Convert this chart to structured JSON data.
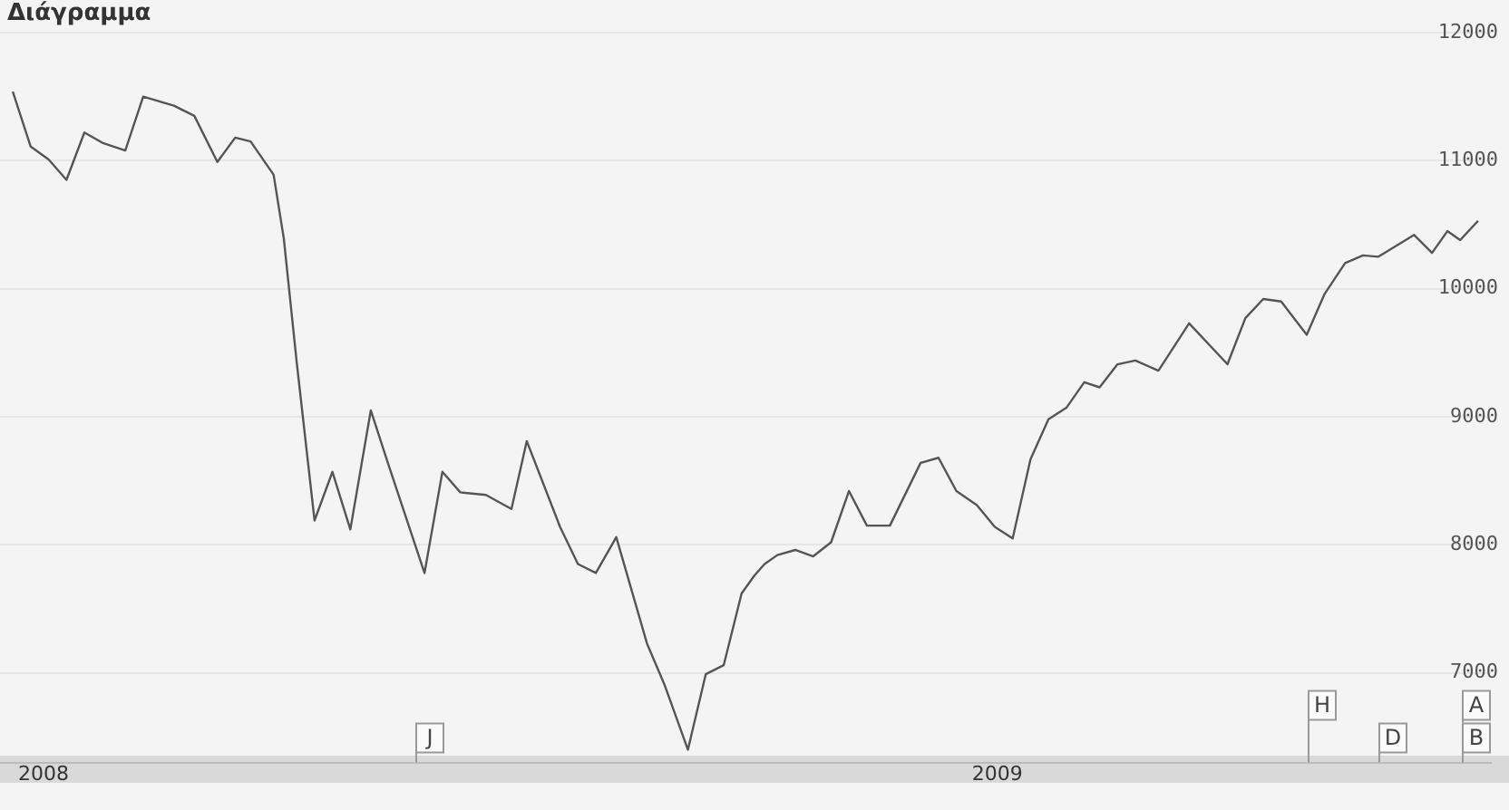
{
  "chart_data": {
    "type": "line",
    "title": "Διάγραμμα",
    "x": [
      "2008-06-15",
      "2008-06-22",
      "2008-06-29",
      "2008-07-06",
      "2008-07-13",
      "2008-07-20",
      "2008-07-29",
      "2008-08-05",
      "2008-08-17",
      "2008-08-25",
      "2008-09-03",
      "2008-09-10",
      "2008-09-16",
      "2008-09-25",
      "2008-09-29",
      "2008-10-04",
      "2008-10-11",
      "2008-10-18",
      "2008-10-25",
      "2008-11-02",
      "2008-11-09",
      "2008-11-23",
      "2008-11-30",
      "2008-12-07",
      "2008-12-17",
      "2008-12-27",
      "2009-01-02",
      "2009-01-15",
      "2009-01-22",
      "2009-01-29",
      "2009-02-06",
      "2009-02-18",
      "2009-02-25",
      "2009-03-06",
      "2009-03-13",
      "2009-03-20",
      "2009-03-27",
      "2009-04-01",
      "2009-04-05",
      "2009-04-10",
      "2009-04-17",
      "2009-04-24",
      "2009-05-01",
      "2009-05-08",
      "2009-05-15",
      "2009-05-24",
      "2009-06-05",
      "2009-06-12",
      "2009-06-19",
      "2009-06-27",
      "2009-07-04",
      "2009-07-11",
      "2009-07-18",
      "2009-07-25",
      "2009-08-01",
      "2009-08-08",
      "2009-08-14",
      "2009-08-21",
      "2009-08-28",
      "2009-09-06",
      "2009-09-18",
      "2009-10-03",
      "2009-10-10",
      "2009-10-17",
      "2009-10-24",
      "2009-11-03",
      "2009-11-10",
      "2009-11-18",
      "2009-11-25",
      "2009-12-01",
      "2009-12-15",
      "2009-12-22",
      "2009-12-28",
      "2010-01-02",
      "2010-01-09"
    ],
    "series": [
      {
        "color": "#555555",
        "values": [
          11540,
          11110,
          11010,
          10850,
          11220,
          11140,
          11080,
          11500,
          11430,
          11350,
          10990,
          11180,
          11150,
          10890,
          10390,
          9430,
          8190,
          8570,
          8120,
          9050,
          8620,
          7780,
          8570,
          8410,
          8390,
          8280,
          8810,
          8140,
          7850,
          7780,
          8060,
          7230,
          6900,
          6400,
          6990,
          7060,
          7620,
          7760,
          7850,
          7920,
          7960,
          7910,
          8020,
          8420,
          8150,
          8150,
          8640,
          8680,
          8420,
          8310,
          8140,
          8050,
          8670,
          8980,
          9070,
          9270,
          9230,
          9410,
          9440,
          9360,
          9730,
          9410,
          9770,
          9920,
          9900,
          9640,
          9960,
          10200,
          10260,
          10250,
          10420,
          10280,
          10450,
          10380,
          10530
        ]
      }
    ],
    "xlim": [
      "2008-06-10",
      "2010-01-14"
    ],
    "xticks": [
      {
        "value": "2008-06-27",
        "label": "2008"
      },
      {
        "value": "2009-07-05",
        "label": "2009"
      }
    ],
    "ylim": [
      6300,
      12000
    ],
    "yticks": [
      7000,
      8000,
      9000,
      10000,
      11000,
      12000
    ],
    "grid": "y",
    "legend": false,
    "marker": "none",
    "line_style": "solid",
    "annotations": [
      "J",
      "H",
      "D",
      "A",
      "B"
    ]
  }
}
